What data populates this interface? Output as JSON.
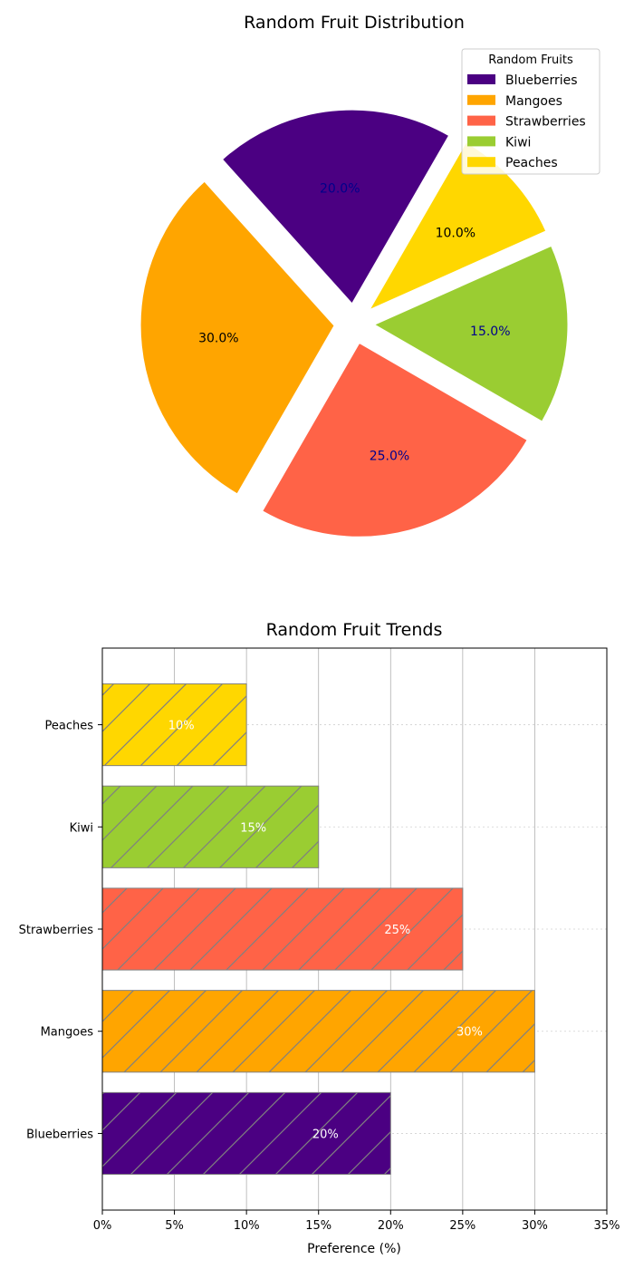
{
  "colors": {
    "Blueberries": "#4b0082",
    "Mangoes": "#ffa500",
    "Strawberries": "#ff6347",
    "Kiwi": "#9acd32",
    "Peaches": "#ffd700",
    "grid": "#b0b0b0",
    "hatch": "#808080"
  },
  "chart_data": [
    {
      "type": "pie",
      "title": "Random Fruit Distribution",
      "categories": [
        "Blueberries",
        "Mangoes",
        "Strawberries",
        "Kiwi",
        "Peaches"
      ],
      "values": [
        20,
        30,
        25,
        15,
        10
      ],
      "labels": [
        "20.0%",
        "30.0%",
        "25.0%",
        "15.0%",
        "10.0%"
      ],
      "legend": {
        "title": "Random Fruits",
        "placement": "top-right",
        "entries": [
          "Blueberries",
          "Mangoes",
          "Strawberries",
          "Kiwi",
          "Peaches"
        ]
      }
    },
    {
      "type": "bar",
      "orientation": "horizontal",
      "title": "Random Fruit Trends",
      "categories": [
        "Blueberries",
        "Mangoes",
        "Strawberries",
        "Kiwi",
        "Peaches"
      ],
      "values": [
        20,
        30,
        25,
        15,
        10
      ],
      "data_labels": [
        "20%",
        "30%",
        "25%",
        "15%",
        "10%"
      ],
      "xlabel": "Preference (%)",
      "ylabel": "",
      "xlim": [
        0,
        35
      ],
      "xticks": [
        "0%",
        "5%",
        "10%",
        "15%",
        "20%",
        "25%",
        "30%",
        "35%"
      ],
      "grid": true,
      "hatch": "diagonal"
    }
  ]
}
